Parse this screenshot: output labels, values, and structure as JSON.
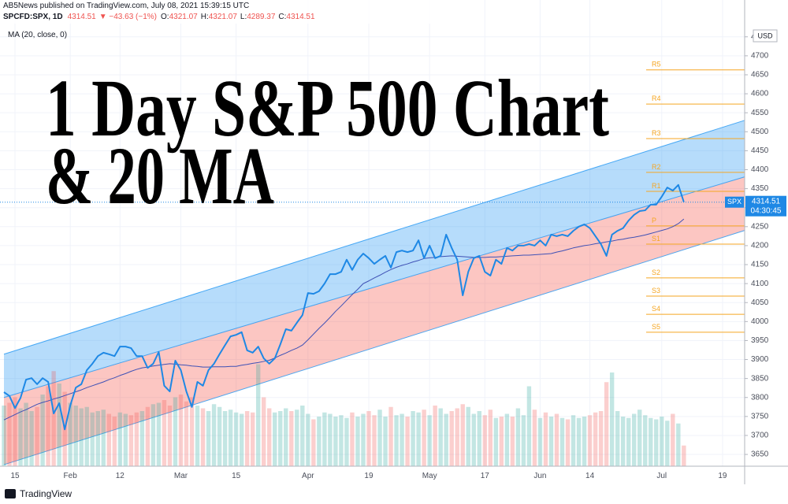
{
  "header": {
    "publisher": "AB5News published on TradingView.com, July 08, 2021 15:39:15 UTC",
    "symbol": "SPCFD:SPX, 1D",
    "last": "4314.51",
    "change": "▼ −43.63 (−1%)",
    "ohlc": [
      {
        "label": "O:",
        "value": "4321.07"
      },
      {
        "label": "H:",
        "value": "4321.07"
      },
      {
        "label": "L:",
        "value": "4289.37"
      },
      {
        "label": "C:",
        "value": "4314.51"
      }
    ]
  },
  "footer": {
    "brand": "TradingView"
  },
  "chart_data": {
    "type": "line",
    "title_lines": [
      "1 Day S&P 500 Chart",
      "& 20 MA"
    ],
    "currency": "USD",
    "countdown": "04:30:45",
    "categories": [
      null,
      null,
      "15",
      null,
      null,
      null,
      null,
      null,
      null,
      null,
      null,
      null,
      "Feb",
      null,
      null,
      null,
      null,
      null,
      null,
      null,
      null,
      "12",
      null,
      null,
      null,
      null,
      null,
      null,
      null,
      null,
      null,
      null,
      "Mar",
      null,
      null,
      null,
      null,
      null,
      null,
      null,
      null,
      null,
      "15",
      null,
      null,
      null,
      null,
      null,
      null,
      null,
      null,
      null,
      null,
      null,
      null,
      "Apr",
      null,
      null,
      null,
      null,
      null,
      null,
      null,
      null,
      null,
      null,
      "19",
      null,
      null,
      null,
      null,
      null,
      null,
      null,
      null,
      null,
      null,
      "May",
      null,
      null,
      null,
      null,
      null,
      null,
      null,
      null,
      null,
      "17",
      null,
      null,
      null,
      null,
      null,
      null,
      null,
      null,
      null,
      "Jun",
      null,
      null,
      null,
      null,
      null,
      null,
      null,
      null,
      "14",
      null,
      null,
      null,
      null,
      null,
      null,
      null,
      null,
      null,
      null,
      null,
      null,
      "Jul",
      null,
      null,
      null,
      null,
      null,
      null,
      null,
      null,
      null,
      null,
      "19",
      null,
      null,
      null,
      null
    ],
    "series": [
      {
        "name": "SPX",
        "color": "#1e88e5",
        "values": [
          3814,
          3804,
          3772,
          3799,
          3847,
          3851,
          3835,
          3851,
          3841,
          3758,
          3785,
          3716,
          3779,
          3826,
          3835,
          3872,
          3889,
          3909,
          3918,
          3914,
          3909,
          3934,
          3934,
          3930,
          3909,
          3909,
          3878,
          3889,
          3920,
          3831,
          3816,
          3897,
          3872,
          3816,
          3775,
          3841,
          3831,
          3872,
          3889,
          3914,
          3938,
          3961,
          3965,
          3972,
          3924,
          3918,
          3934,
          3903,
          3889,
          3903,
          3940,
          3980,
          3976,
          3997,
          4017,
          4075,
          4073,
          4080,
          4100,
          4125,
          4125,
          4131,
          4163,
          4136,
          4163,
          4179,
          4167,
          4152,
          4163,
          4173,
          4142,
          4183,
          4187,
          4183,
          4187,
          4214,
          4167,
          4200,
          4167,
          4173,
          4229,
          4194,
          4163,
          4069,
          4131,
          4167,
          4173,
          4131,
          4121,
          4163,
          4152,
          4194,
          4187,
          4200,
          4200,
          4204,
          4200,
          4214,
          4200,
          4229,
          4225,
          4229,
          4225,
          4239,
          4250,
          4256,
          4246,
          4225,
          4204,
          4173,
          4229,
          4239,
          4246,
          4266,
          4281,
          4291,
          4293,
          4308,
          4308,
          4329,
          4353,
          4345,
          4360,
          4314.51,
          null,
          null,
          null,
          null,
          null,
          null,
          null,
          null,
          null,
          null,
          null
        ]
      },
      {
        "name": "MA (20, close, 0)",
        "color": "#3f51b5",
        "values": [
          3741,
          3748,
          3755,
          3762,
          3768,
          3775,
          3782,
          3787,
          3791,
          3796,
          3800,
          3805,
          3810,
          3815,
          3820,
          3826,
          3831,
          3836,
          3841,
          3847,
          3852,
          3858,
          3863,
          3869,
          3874,
          3878,
          3880,
          3883,
          3885,
          3887,
          3889,
          3888,
          3886,
          3885,
          3883,
          3882,
          3880,
          3880,
          3881,
          3881,
          3881,
          3882,
          3882,
          3885,
          3887,
          3890,
          3892,
          3895,
          3898,
          3904,
          3911,
          3917,
          3924,
          3930,
          3938,
          3952,
          3967,
          3982,
          3996,
          4011,
          4027,
          4041,
          4056,
          4071,
          4085,
          4100,
          4107,
          4115,
          4122,
          4130,
          4137,
          4143,
          4148,
          4152,
          4157,
          4161,
          4166,
          4168,
          4169,
          4171,
          4172,
          4173,
          4172,
          4171,
          4170,
          4169,
          4169,
          4169,
          4170,
          4170,
          4171,
          4172,
          4173,
          4174,
          4175,
          4175,
          4176,
          4177,
          4178,
          4179,
          4183,
          4186,
          4190,
          4194,
          4197,
          4200,
          4202,
          4205,
          4207,
          4210,
          4212,
          4215,
          4217,
          4220,
          4222,
          4225,
          4228,
          4232,
          4236,
          4240,
          4244,
          4250,
          4258,
          4270,
          null,
          null,
          null,
          null,
          null,
          null,
          null,
          null,
          null,
          null,
          null
        ]
      }
    ],
    "volume": {
      "up_color": "rgba(38,166,154,0.28)",
      "down_color": "rgba(239,83,80,0.28)",
      "lim": [
        0,
        8
      ],
      "values": [
        4.4,
        4.6,
        5.0,
        4.2,
        4.6,
        4.0,
        4.3,
        5.2,
        5.8,
        6.9,
        6.0,
        5.4,
        4.6,
        4.4,
        4.2,
        4.3,
        3.9,
        4.0,
        4.1,
        3.8,
        3.6,
        3.9,
        3.8,
        3.7,
        3.9,
        4.0,
        4.3,
        4.5,
        4.6,
        4.8,
        4.4,
        5.0,
        5.2,
        4.7,
        5.0,
        4.4,
        4.2,
        4.0,
        4.5,
        4.3,
        4.0,
        4.1,
        3.9,
        3.8,
        4.0,
        3.9,
        7.4,
        5.0,
        4.2,
        3.9,
        4.0,
        4.2,
        4.0,
        4.1,
        4.4,
        3.8,
        3.4,
        3.6,
        3.9,
        3.8,
        3.6,
        3.7,
        3.5,
        3.9,
        3.6,
        3.8,
        4.0,
        3.7,
        4.1,
        3.6,
        4.3,
        3.7,
        3.8,
        3.6,
        4.0,
        3.9,
        4.1,
        3.7,
        4.4,
        4.2,
        3.8,
        4.0,
        4.2,
        4.5,
        4.3,
        3.8,
        4.0,
        3.7,
        4.1,
        3.5,
        3.6,
        3.8,
        3.6,
        4.2,
        3.7,
        5.8,
        4.1,
        3.5,
        3.9,
        3.6,
        3.8,
        3.5,
        3.4,
        3.7,
        3.5,
        3.6,
        3.7,
        3.9,
        4.0,
        6.1,
        6.8,
        4.0,
        3.6,
        3.5,
        3.8,
        4.1,
        3.7,
        3.5,
        3.4,
        3.6,
        3.3,
        3.8,
        3.1,
        1.5,
        null,
        null,
        null,
        null,
        null,
        null,
        null,
        null,
        null,
        null,
        null
      ]
    },
    "channel": {
      "upper": [
        3914,
        4530
      ],
      "middle": [
        3800,
        4381
      ],
      "lower": [
        3623,
        4240
      ],
      "upper_fill": "rgba(33,150,243,0.33)",
      "lower_fill": "rgba(244,67,54,0.3)",
      "line_color": "#2196f3"
    },
    "pivot_color": "#f5a623",
    "pivots": [
      {
        "label": "R5",
        "value": 4663
      },
      {
        "label": "R4",
        "value": 4573
      },
      {
        "label": "R3",
        "value": 4482
      },
      {
        "label": "R2",
        "value": 4393
      },
      {
        "label": "R1",
        "value": 4343
      },
      {
        "label": "P",
        "value": 4252
      },
      {
        "label": "S1",
        "value": 4204
      },
      {
        "label": "S2",
        "value": 4115
      },
      {
        "label": "S3",
        "value": 4067
      },
      {
        "label": "S4",
        "value": 4019
      },
      {
        "label": "S5",
        "value": 3972
      }
    ],
    "ylim": [
      3619,
      4847
    ],
    "yticks": [
      3650,
      3700,
      3750,
      3800,
      3850,
      3900,
      3950,
      4000,
      4050,
      4100,
      4150,
      4200,
      4250,
      4300,
      4350,
      4400,
      4450,
      4500,
      4550,
      4600,
      4650,
      4700,
      4750
    ],
    "grid": true
  }
}
